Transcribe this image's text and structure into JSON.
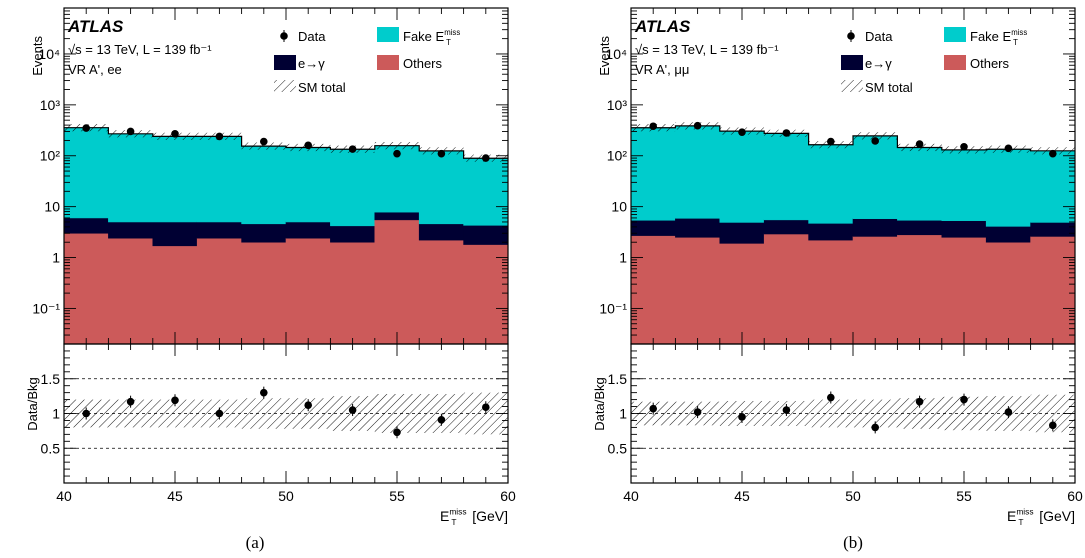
{
  "figure": {
    "captions": [
      "(a)",
      "(b)"
    ]
  },
  "colors": {
    "fake_met": "#00cccc",
    "e_to_gamma": "#000033",
    "others": "#cc5a5a",
    "data": "#000000"
  },
  "chart_data": [
    {
      "type": "bar",
      "panel": "(a)",
      "experiment": "ATLAS",
      "energy_label": "√s = 13 TeV, L = 139 fb⁻¹",
      "region_label": "VR A', ee",
      "ylabel": "Events",
      "ratio_ylabel": "Data/Bkg",
      "xlabel": "E_T^miss [GeV]",
      "xlim": [
        40,
        60
      ],
      "ylim_log": [
        0.02,
        80000
      ],
      "ratio_ylim": [
        0,
        2
      ],
      "x_ticks": [
        40,
        45,
        50,
        55,
        60
      ],
      "y_tick_labels": [
        "10⁻¹",
        "1",
        "10",
        "10²",
        "10³",
        "10⁴"
      ],
      "ratio_ticks": [
        "0.5",
        "1",
        "1.5"
      ],
      "legend": [
        "Data",
        "Fake E_T^miss",
        "e→γ",
        "Others",
        "SM total"
      ],
      "bin_edges": [
        40,
        42,
        44,
        46,
        48,
        50,
        52,
        54,
        56,
        58,
        60
      ],
      "series": [
        {
          "name": "Others",
          "values": [
            3.0,
            2.4,
            1.7,
            2.4,
            2.0,
            2.4,
            2.0,
            5.5,
            2.2,
            1.8
          ]
        },
        {
          "name": "e→γ",
          "values": [
            3.0,
            2.6,
            3.3,
            2.6,
            2.6,
            2.6,
            2.2,
            2.3,
            2.4,
            2.5
          ]
        },
        {
          "name": "Fake E_T^miss",
          "values": [
            350,
            265,
            235,
            235,
            150,
            140,
            130,
            150,
            120,
            85
          ]
        }
      ],
      "data_points": {
        "x": [
          41,
          43,
          45,
          47,
          49,
          51,
          53,
          55,
          57,
          59
        ],
        "y": [
          350,
          300,
          270,
          240,
          190,
          160,
          135,
          110,
          110,
          90
        ]
      },
      "ratio": {
        "x": [
          41,
          43,
          45,
          47,
          49,
          51,
          53,
          55,
          57,
          59
        ],
        "y": [
          1.0,
          1.17,
          1.19,
          1.0,
          1.3,
          1.12,
          1.05,
          0.73,
          0.91,
          1.09
        ],
        "band_halfwidth": [
          0.2,
          0.2,
          0.2,
          0.2,
          0.22,
          0.22,
          0.25,
          0.28,
          0.28,
          0.3
        ]
      }
    },
    {
      "type": "bar",
      "panel": "(b)",
      "experiment": "ATLAS",
      "energy_label": "√s = 13 TeV, L = 139 fb⁻¹",
      "region_label": "VR A', μμ",
      "ylabel": "Events",
      "ratio_ylabel": "Data/Bkg",
      "xlabel": "E_T^miss [GeV]",
      "xlim": [
        40,
        60
      ],
      "ylim_log": [
        0.02,
        80000
      ],
      "ratio_ylim": [
        0,
        2
      ],
      "x_ticks": [
        40,
        45,
        50,
        55,
        60
      ],
      "y_tick_labels": [
        "10⁻¹",
        "1",
        "10",
        "10²",
        "10³",
        "10⁴"
      ],
      "ratio_ticks": [
        "0.5",
        "1",
        "1.5"
      ],
      "legend": [
        "Data",
        "Fake E_T^miss",
        "e→γ",
        "Others",
        "SM total"
      ],
      "bin_edges": [
        40,
        42,
        44,
        46,
        48,
        50,
        52,
        54,
        56,
        58,
        60
      ],
      "series": [
        {
          "name": "Others",
          "values": [
            2.7,
            2.5,
            1.9,
            2.9,
            2.2,
            2.6,
            2.8,
            2.5,
            2.0,
            2.6
          ]
        },
        {
          "name": "e→γ",
          "values": [
            2.7,
            3.4,
            3.0,
            2.6,
            2.5,
            3.2,
            2.6,
            2.8,
            2.1,
            2.3
          ]
        },
        {
          "name": "Fake E_T^miss",
          "values": [
            350,
            380,
            300,
            270,
            160,
            240,
            140,
            125,
            130,
            120
          ]
        }
      ],
      "data_points": {
        "x": [
          41,
          43,
          45,
          47,
          49,
          51,
          53,
          55,
          57,
          59
        ],
        "y": [
          380,
          390,
          290,
          280,
          190,
          195,
          170,
          150,
          140,
          110
        ]
      },
      "ratio": {
        "x": [
          41,
          43,
          45,
          47,
          49,
          51,
          53,
          55,
          57,
          59
        ],
        "y": [
          1.07,
          1.02,
          0.95,
          1.05,
          1.23,
          0.8,
          1.17,
          1.2,
          1.02,
          0.83
        ],
        "band_halfwidth": [
          0.17,
          0.17,
          0.18,
          0.18,
          0.2,
          0.2,
          0.22,
          0.24,
          0.25,
          0.27
        ]
      }
    }
  ]
}
